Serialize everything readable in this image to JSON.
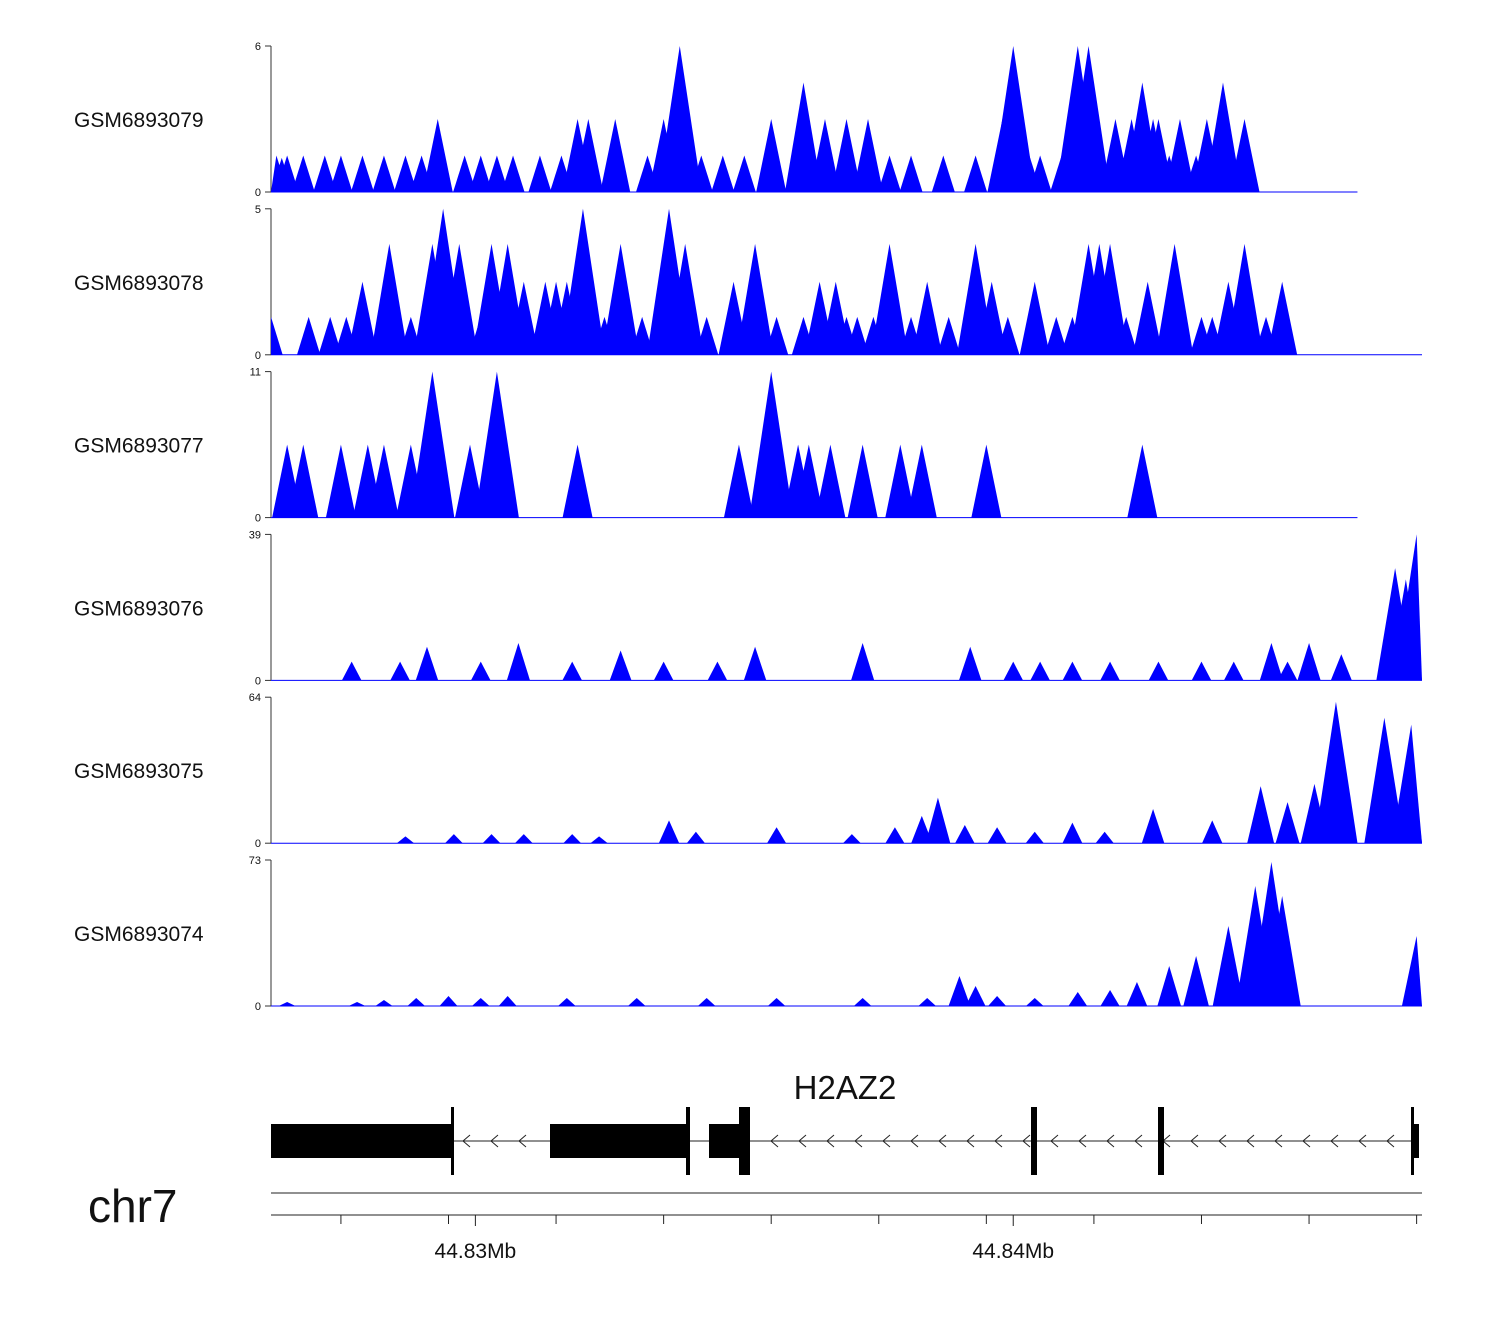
{
  "chart_data": {
    "type": "area",
    "fill_color": "#0000ff",
    "x_range_mb": [
      44.8262,
      44.8476
    ],
    "tracks": [
      {
        "name": "GSM6893079",
        "ymax": 6,
        "ytick_labels": [
          "0",
          "6"
        ],
        "peaks": [
          [
            44.8263,
            1.5
          ],
          [
            44.8264,
            1.4
          ],
          [
            44.8265,
            1.5
          ],
          [
            44.8268,
            1.5
          ],
          [
            44.8272,
            1.5
          ],
          [
            44.8275,
            1.5
          ],
          [
            44.8279,
            1.5
          ],
          [
            44.8283,
            1.5
          ],
          [
            44.8287,
            1.5
          ],
          [
            44.829,
            1.5
          ],
          [
            44.8293,
            3.0
          ],
          [
            44.8298,
            1.5
          ],
          [
            44.8301,
            1.5
          ],
          [
            44.8304,
            1.5
          ],
          [
            44.8307,
            1.5
          ],
          [
            44.8312,
            1.5
          ],
          [
            44.8316,
            1.5
          ],
          [
            44.8319,
            3.0
          ],
          [
            44.8321,
            3.0
          ],
          [
            44.8326,
            3.0
          ],
          [
            44.8332,
            1.5
          ],
          [
            44.8335,
            3.0
          ],
          [
            44.8338,
            6.0
          ],
          [
            44.8342,
            1.5
          ],
          [
            44.8346,
            1.5
          ],
          [
            44.835,
            1.5
          ],
          [
            44.8355,
            3.0
          ],
          [
            44.8361,
            4.5
          ],
          [
            44.8365,
            3.0
          ],
          [
            44.8369,
            3.0
          ],
          [
            44.8373,
            3.0
          ],
          [
            44.8377,
            1.5
          ],
          [
            44.8381,
            1.5
          ],
          [
            44.8387,
            1.5
          ],
          [
            44.8393,
            1.5
          ],
          [
            44.8398,
            3.0
          ],
          [
            44.84,
            6.0
          ],
          [
            44.8403,
            1.5
          ],
          [
            44.8405,
            1.5
          ],
          [
            44.8409,
            1.5
          ],
          [
            44.8412,
            6.0
          ],
          [
            44.8414,
            6.0
          ],
          [
            44.8416,
            1.5
          ],
          [
            44.8419,
            3.0
          ],
          [
            44.8422,
            3.0
          ],
          [
            44.8424,
            4.5
          ],
          [
            44.8426,
            3.0
          ],
          [
            44.8427,
            3.0
          ],
          [
            44.8429,
            1.5
          ],
          [
            44.8431,
            3.0
          ],
          [
            44.8434,
            1.5
          ],
          [
            44.8436,
            3.0
          ],
          [
            44.8439,
            4.5
          ],
          [
            44.8443,
            3.0
          ]
        ],
        "baseline_end": 44.8464
      },
      {
        "name": "GSM6893078",
        "ymax": 5,
        "ytick_labels": [
          "0",
          "5"
        ],
        "peaks": [
          [
            44.8262,
            1.3
          ],
          [
            44.8269,
            1.3
          ],
          [
            44.8273,
            1.3
          ],
          [
            44.8276,
            1.3
          ],
          [
            44.8279,
            2.5
          ],
          [
            44.8284,
            3.8
          ],
          [
            44.8288,
            1.3
          ],
          [
            44.8292,
            3.8
          ],
          [
            44.8294,
            5.0
          ],
          [
            44.8297,
            3.8
          ],
          [
            44.8301,
            1.3
          ],
          [
            44.8303,
            3.8
          ],
          [
            44.8306,
            3.8
          ],
          [
            44.8309,
            2.5
          ],
          [
            44.8313,
            2.5
          ],
          [
            44.8315,
            2.5
          ],
          [
            44.8317,
            2.5
          ],
          [
            44.832,
            5.0
          ],
          [
            44.8324,
            1.3
          ],
          [
            44.8327,
            3.8
          ],
          [
            44.8331,
            1.3
          ],
          [
            44.8334,
            1.3
          ],
          [
            44.8336,
            5.0
          ],
          [
            44.8339,
            3.8
          ],
          [
            44.8343,
            1.3
          ],
          [
            44.8348,
            2.5
          ],
          [
            44.8352,
            3.8
          ],
          [
            44.8356,
            1.3
          ],
          [
            44.8361,
            1.3
          ],
          [
            44.8364,
            2.5
          ],
          [
            44.8367,
            2.5
          ],
          [
            44.8369,
            1.3
          ],
          [
            44.8371,
            1.3
          ],
          [
            44.8374,
            1.3
          ],
          [
            44.8377,
            3.8
          ],
          [
            44.8381,
            1.3
          ],
          [
            44.8384,
            2.5
          ],
          [
            44.8388,
            1.3
          ],
          [
            44.8393,
            3.8
          ],
          [
            44.8396,
            2.5
          ],
          [
            44.8399,
            1.3
          ],
          [
            44.8404,
            2.5
          ],
          [
            44.8408,
            1.3
          ],
          [
            44.8411,
            1.3
          ],
          [
            44.8414,
            3.8
          ],
          [
            44.8416,
            3.8
          ],
          [
            44.8418,
            3.8
          ],
          [
            44.8421,
            1.3
          ],
          [
            44.8425,
            2.5
          ],
          [
            44.843,
            3.8
          ],
          [
            44.8435,
            1.3
          ],
          [
            44.8437,
            1.3
          ],
          [
            44.844,
            2.5
          ],
          [
            44.8443,
            3.8
          ],
          [
            44.8447,
            1.3
          ],
          [
            44.845,
            2.5
          ]
        ],
        "baseline_end": 44.8476
      },
      {
        "name": "GSM6893077",
        "ymax": 11,
        "ytick_labels": [
          "0",
          "11"
        ],
        "peaks": [
          [
            44.8265,
            5.5
          ],
          [
            44.8268,
            5.5
          ],
          [
            44.8275,
            5.5
          ],
          [
            44.828,
            5.5
          ],
          [
            44.8283,
            5.5
          ],
          [
            44.8288,
            5.5
          ],
          [
            44.8292,
            11.0
          ],
          [
            44.8299,
            5.5
          ],
          [
            44.8304,
            11.0
          ],
          [
            44.8319,
            5.5
          ],
          [
            44.8349,
            5.5
          ],
          [
            44.8355,
            11.0
          ],
          [
            44.836,
            5.5
          ],
          [
            44.8362,
            5.5
          ],
          [
            44.8366,
            5.5
          ],
          [
            44.8372,
            5.5
          ],
          [
            44.8379,
            5.5
          ],
          [
            44.8383,
            5.5
          ],
          [
            44.8395,
            5.5
          ],
          [
            44.8424,
            5.5
          ]
        ],
        "baseline_end": 44.8464
      },
      {
        "name": "GSM6893076",
        "ymax": 39,
        "ytick_labels": [
          "0",
          "39"
        ],
        "peaks": [
          [
            44.8277,
            5
          ],
          [
            44.8286,
            5
          ],
          [
            44.8291,
            9
          ],
          [
            44.8301,
            5
          ],
          [
            44.8308,
            10
          ],
          [
            44.8318,
            5
          ],
          [
            44.8327,
            8
          ],
          [
            44.8335,
            5
          ],
          [
            44.8345,
            5
          ],
          [
            44.8352,
            9
          ],
          [
            44.8372,
            10
          ],
          [
            44.8392,
            9
          ],
          [
            44.84,
            5
          ],
          [
            44.8405,
            5
          ],
          [
            44.8411,
            5
          ],
          [
            44.8418,
            5
          ],
          [
            44.8427,
            5
          ],
          [
            44.8435,
            5
          ],
          [
            44.8441,
            5
          ],
          [
            44.8448,
            10
          ],
          [
            44.8451,
            5
          ],
          [
            44.8455,
            10
          ],
          [
            44.8461,
            7
          ],
          [
            44.8471,
            30
          ],
          [
            44.8473,
            27
          ],
          [
            44.8475,
            39
          ]
        ],
        "baseline_end": 44.8476
      },
      {
        "name": "GSM6893075",
        "ymax": 64,
        "ytick_labels": [
          "0",
          "64"
        ],
        "peaks": [
          [
            44.8287,
            3
          ],
          [
            44.8296,
            4
          ],
          [
            44.8303,
            4
          ],
          [
            44.8309,
            4
          ],
          [
            44.8318,
            4
          ],
          [
            44.8323,
            3
          ],
          [
            44.8336,
            10
          ],
          [
            44.8341,
            5
          ],
          [
            44.8356,
            7
          ],
          [
            44.837,
            4
          ],
          [
            44.8378,
            7
          ],
          [
            44.8383,
            12
          ],
          [
            44.8386,
            20
          ],
          [
            44.8391,
            8
          ],
          [
            44.8397,
            7
          ],
          [
            44.8404,
            5
          ],
          [
            44.8411,
            9
          ],
          [
            44.8417,
            5
          ],
          [
            44.8426,
            15
          ],
          [
            44.8437,
            10
          ],
          [
            44.8446,
            25
          ],
          [
            44.8451,
            18
          ],
          [
            44.8456,
            26
          ],
          [
            44.846,
            62
          ],
          [
            44.8469,
            55
          ],
          [
            44.8474,
            52
          ],
          [
            44.8475,
            20
          ]
        ],
        "baseline_end": 44.8476
      },
      {
        "name": "GSM6893074",
        "ymax": 73,
        "ytick_labels": [
          "0",
          "73"
        ],
        "peaks": [
          [
            44.8265,
            2
          ],
          [
            44.8278,
            2
          ],
          [
            44.8283,
            3
          ],
          [
            44.8289,
            4
          ],
          [
            44.8295,
            5
          ],
          [
            44.8301,
            4
          ],
          [
            44.8306,
            5
          ],
          [
            44.8317,
            4
          ],
          [
            44.833,
            4
          ],
          [
            44.8343,
            4
          ],
          [
            44.8356,
            4
          ],
          [
            44.8372,
            4
          ],
          [
            44.8384,
            4
          ],
          [
            44.839,
            15
          ],
          [
            44.8393,
            10
          ],
          [
            44.8397,
            5
          ],
          [
            44.8404,
            4
          ],
          [
            44.8412,
            7
          ],
          [
            44.8418,
            8
          ],
          [
            44.8423,
            12
          ],
          [
            44.8429,
            20
          ],
          [
            44.8434,
            25
          ],
          [
            44.844,
            40
          ],
          [
            44.8445,
            60
          ],
          [
            44.8448,
            72
          ],
          [
            44.845,
            55
          ],
          [
            44.8475,
            35
          ]
        ],
        "baseline_end": 44.8476
      }
    ],
    "gene": {
      "name": "H2AZ2",
      "strand": "-"
    },
    "chromosome": "chr7",
    "x_ticks": [
      {
        "position_mb": 44.83,
        "label": "44.83Mb"
      },
      {
        "position_mb": 44.84,
        "label": "44.84Mb"
      }
    ]
  }
}
